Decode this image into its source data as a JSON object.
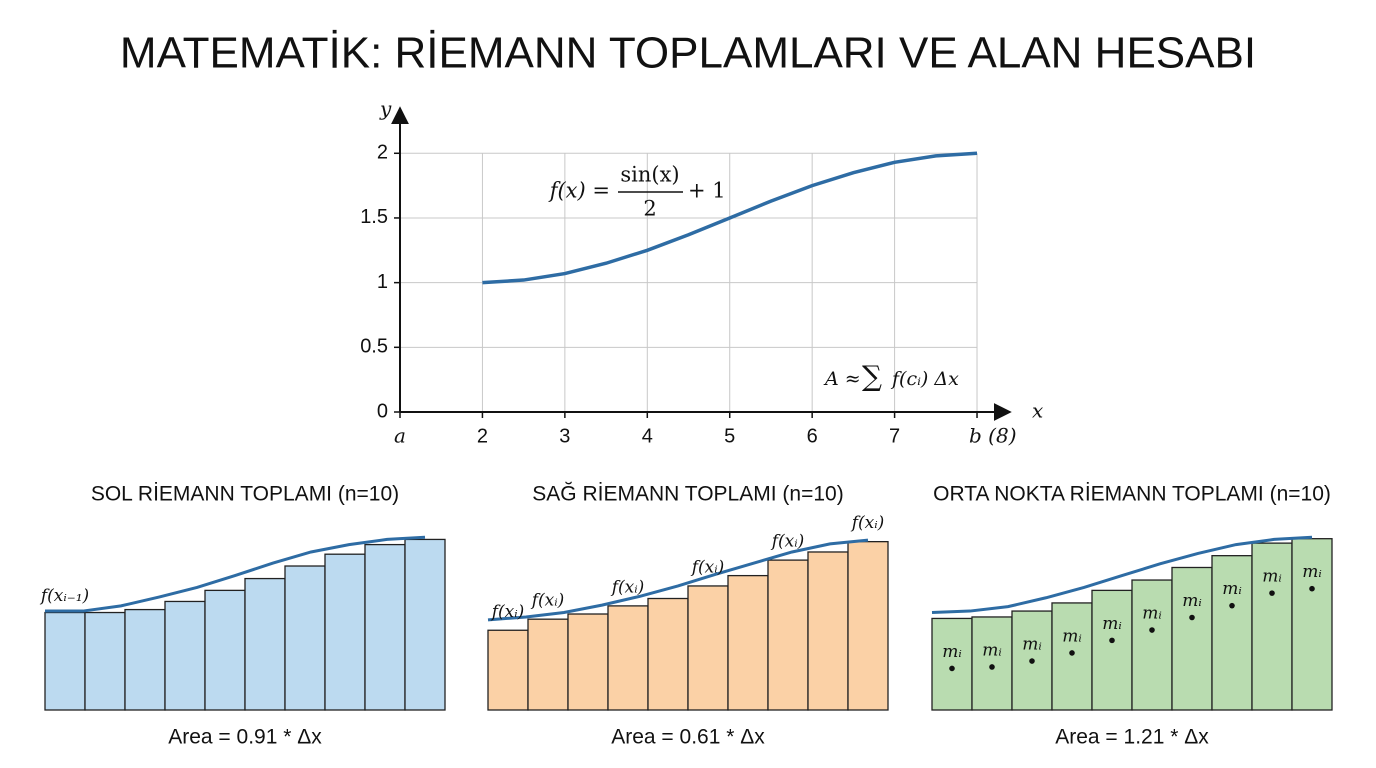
{
  "title": "MATEMATİK: RİEMANN TOPLAMLARI VE ALAN HESABI",
  "chart_data": [
    {
      "type": "line",
      "x": [
        2,
        2.5,
        3,
        3.5,
        4,
        4.5,
        5,
        5.5,
        6,
        6.5,
        7,
        7.5,
        8
      ],
      "series": [
        {
          "color": "#2e6ca4",
          "values": [
            1.0,
            1.02,
            1.07,
            1.15,
            1.25,
            1.37,
            1.5,
            1.63,
            1.75,
            1.85,
            1.93,
            1.98,
            2.0
          ]
        }
      ],
      "xlim": [
        1,
        8.4
      ],
      "ylim": [
        0,
        2.35
      ],
      "xticks": [
        {
          "value": 1,
          "label": "a"
        },
        2,
        3,
        4,
        5,
        6,
        7,
        {
          "value": 8,
          "label": "b (8)"
        }
      ],
      "yticks": [
        0,
        0.5,
        1,
        1.5,
        2
      ],
      "grid": true,
      "xlabel": "x",
      "ylabel": "y",
      "formula": {
        "lhs": "f(x) =",
        "numerator": "sin(x)",
        "denominator": "2",
        "rhs": "+ 1"
      },
      "area_formula": {
        "lhs": "A ≈",
        "sum": "∑",
        "term": "f(cᵢ) Δx"
      }
    },
    {
      "type": "bar",
      "title": "SOL RİEMANN TOPLAMI (n=10)",
      "color": "#bcdaf0",
      "values": [
        1.0,
        1.0,
        1.04,
        1.15,
        1.3,
        1.46,
        1.63,
        1.79,
        1.92,
        1.99
      ],
      "bar_labels": [
        "f(xᵢ₋₁)",
        null,
        null,
        null,
        null,
        null,
        null,
        null,
        null,
        null
      ],
      "curve": [
        1.02,
        1.02,
        1.09,
        1.21,
        1.34,
        1.5,
        1.67,
        1.82,
        1.92,
        1.99,
        2.02
      ],
      "curve_color": "#2e6ca4",
      "ylim": [
        -0.32,
        2.05
      ],
      "caption": "Area = 0.91 * Δx"
    },
    {
      "type": "bar",
      "title": "SAĞ RİEMANN TOPLAMI (n=10)",
      "color": "#fbd1a6",
      "values": [
        0.76,
        0.91,
        0.98,
        1.09,
        1.19,
        1.36,
        1.5,
        1.71,
        1.82,
        1.96
      ],
      "bar_labels": [
        "f(xᵢ)",
        "f(xᵢ)",
        null,
        "f(xᵢ)",
        null,
        "f(xᵢ)",
        null,
        "f(xᵢ)",
        null,
        "f(xᵢ)"
      ],
      "curve": [
        0.9,
        0.94,
        1.0,
        1.1,
        1.22,
        1.36,
        1.52,
        1.67,
        1.82,
        1.93,
        1.98
      ],
      "curve_color": "#2e6ca4",
      "ylim": [
        -0.32,
        2.05
      ],
      "caption": "Area = 0.61 * Δx"
    },
    {
      "type": "bar",
      "title": "ORTA NOKTA RİEMANN TOPLAMI (n=10)",
      "color": "#b9dcb0",
      "values": [
        0.92,
        0.94,
        1.02,
        1.13,
        1.3,
        1.44,
        1.61,
        1.77,
        1.94,
        2.0
      ],
      "bar_labels": [
        "mᵢ",
        "mᵢ",
        "mᵢ",
        "mᵢ",
        "mᵢ",
        "mᵢ",
        "mᵢ",
        "mᵢ",
        "mᵢ",
        "mᵢ"
      ],
      "curve": [
        1.0,
        1.02,
        1.08,
        1.2,
        1.34,
        1.5,
        1.66,
        1.8,
        1.92,
        1.99,
        2.02
      ],
      "curve_color": "#2e6ca4",
      "ylim": [
        -0.32,
        2.05
      ],
      "caption": "Area = 1.21 * Δx"
    }
  ]
}
